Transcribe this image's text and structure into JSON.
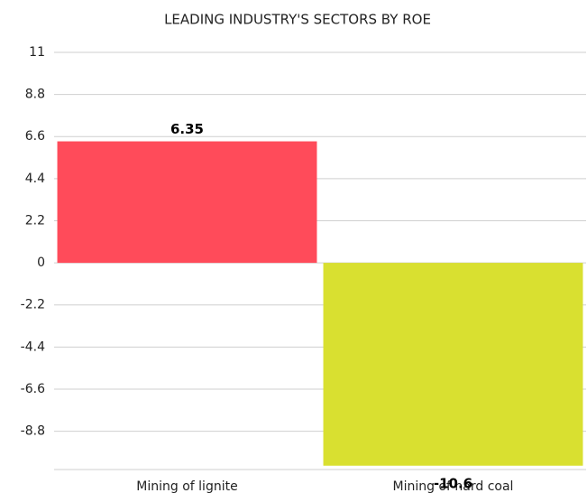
{
  "chart_data": {
    "type": "bar",
    "title": "LEADING INDUSTRY'S SECTORS BY ROE",
    "categories": [
      "Mining of lignite",
      "Mining of hard coal"
    ],
    "values": [
      6.35,
      -10.6
    ],
    "colors": [
      "#ff4b5a",
      "#d9e030"
    ],
    "ylim": [
      -10.8,
      11
    ],
    "yticks": [
      -8.8,
      -6.6,
      -4.4,
      -2.2,
      0,
      2.2,
      4.4,
      6.6,
      8.8,
      11
    ],
    "grid": true
  }
}
